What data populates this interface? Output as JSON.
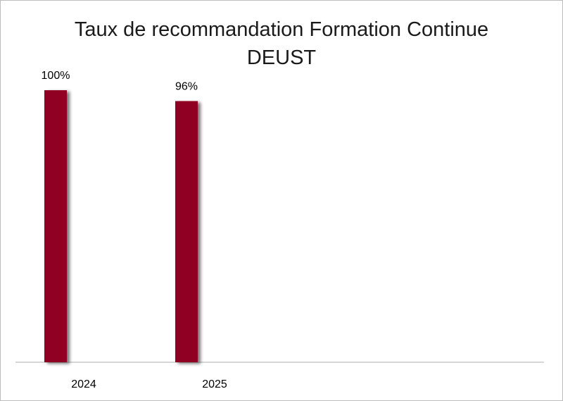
{
  "chart_data": {
    "type": "bar",
    "title_line1": "Taux de recommandation Formation Continue",
    "title_line2": "DEUST",
    "categories": [
      "2024",
      "2025"
    ],
    "series": [
      {
        "values": [
          100,
          96
        ],
        "data_labels": [
          "100%",
          "96%"
        ]
      }
    ],
    "ylim": [
      0,
      100
    ],
    "grid": false,
    "colors": {
      "bar": "#900020",
      "axis": "#bfbfbf"
    }
  }
}
